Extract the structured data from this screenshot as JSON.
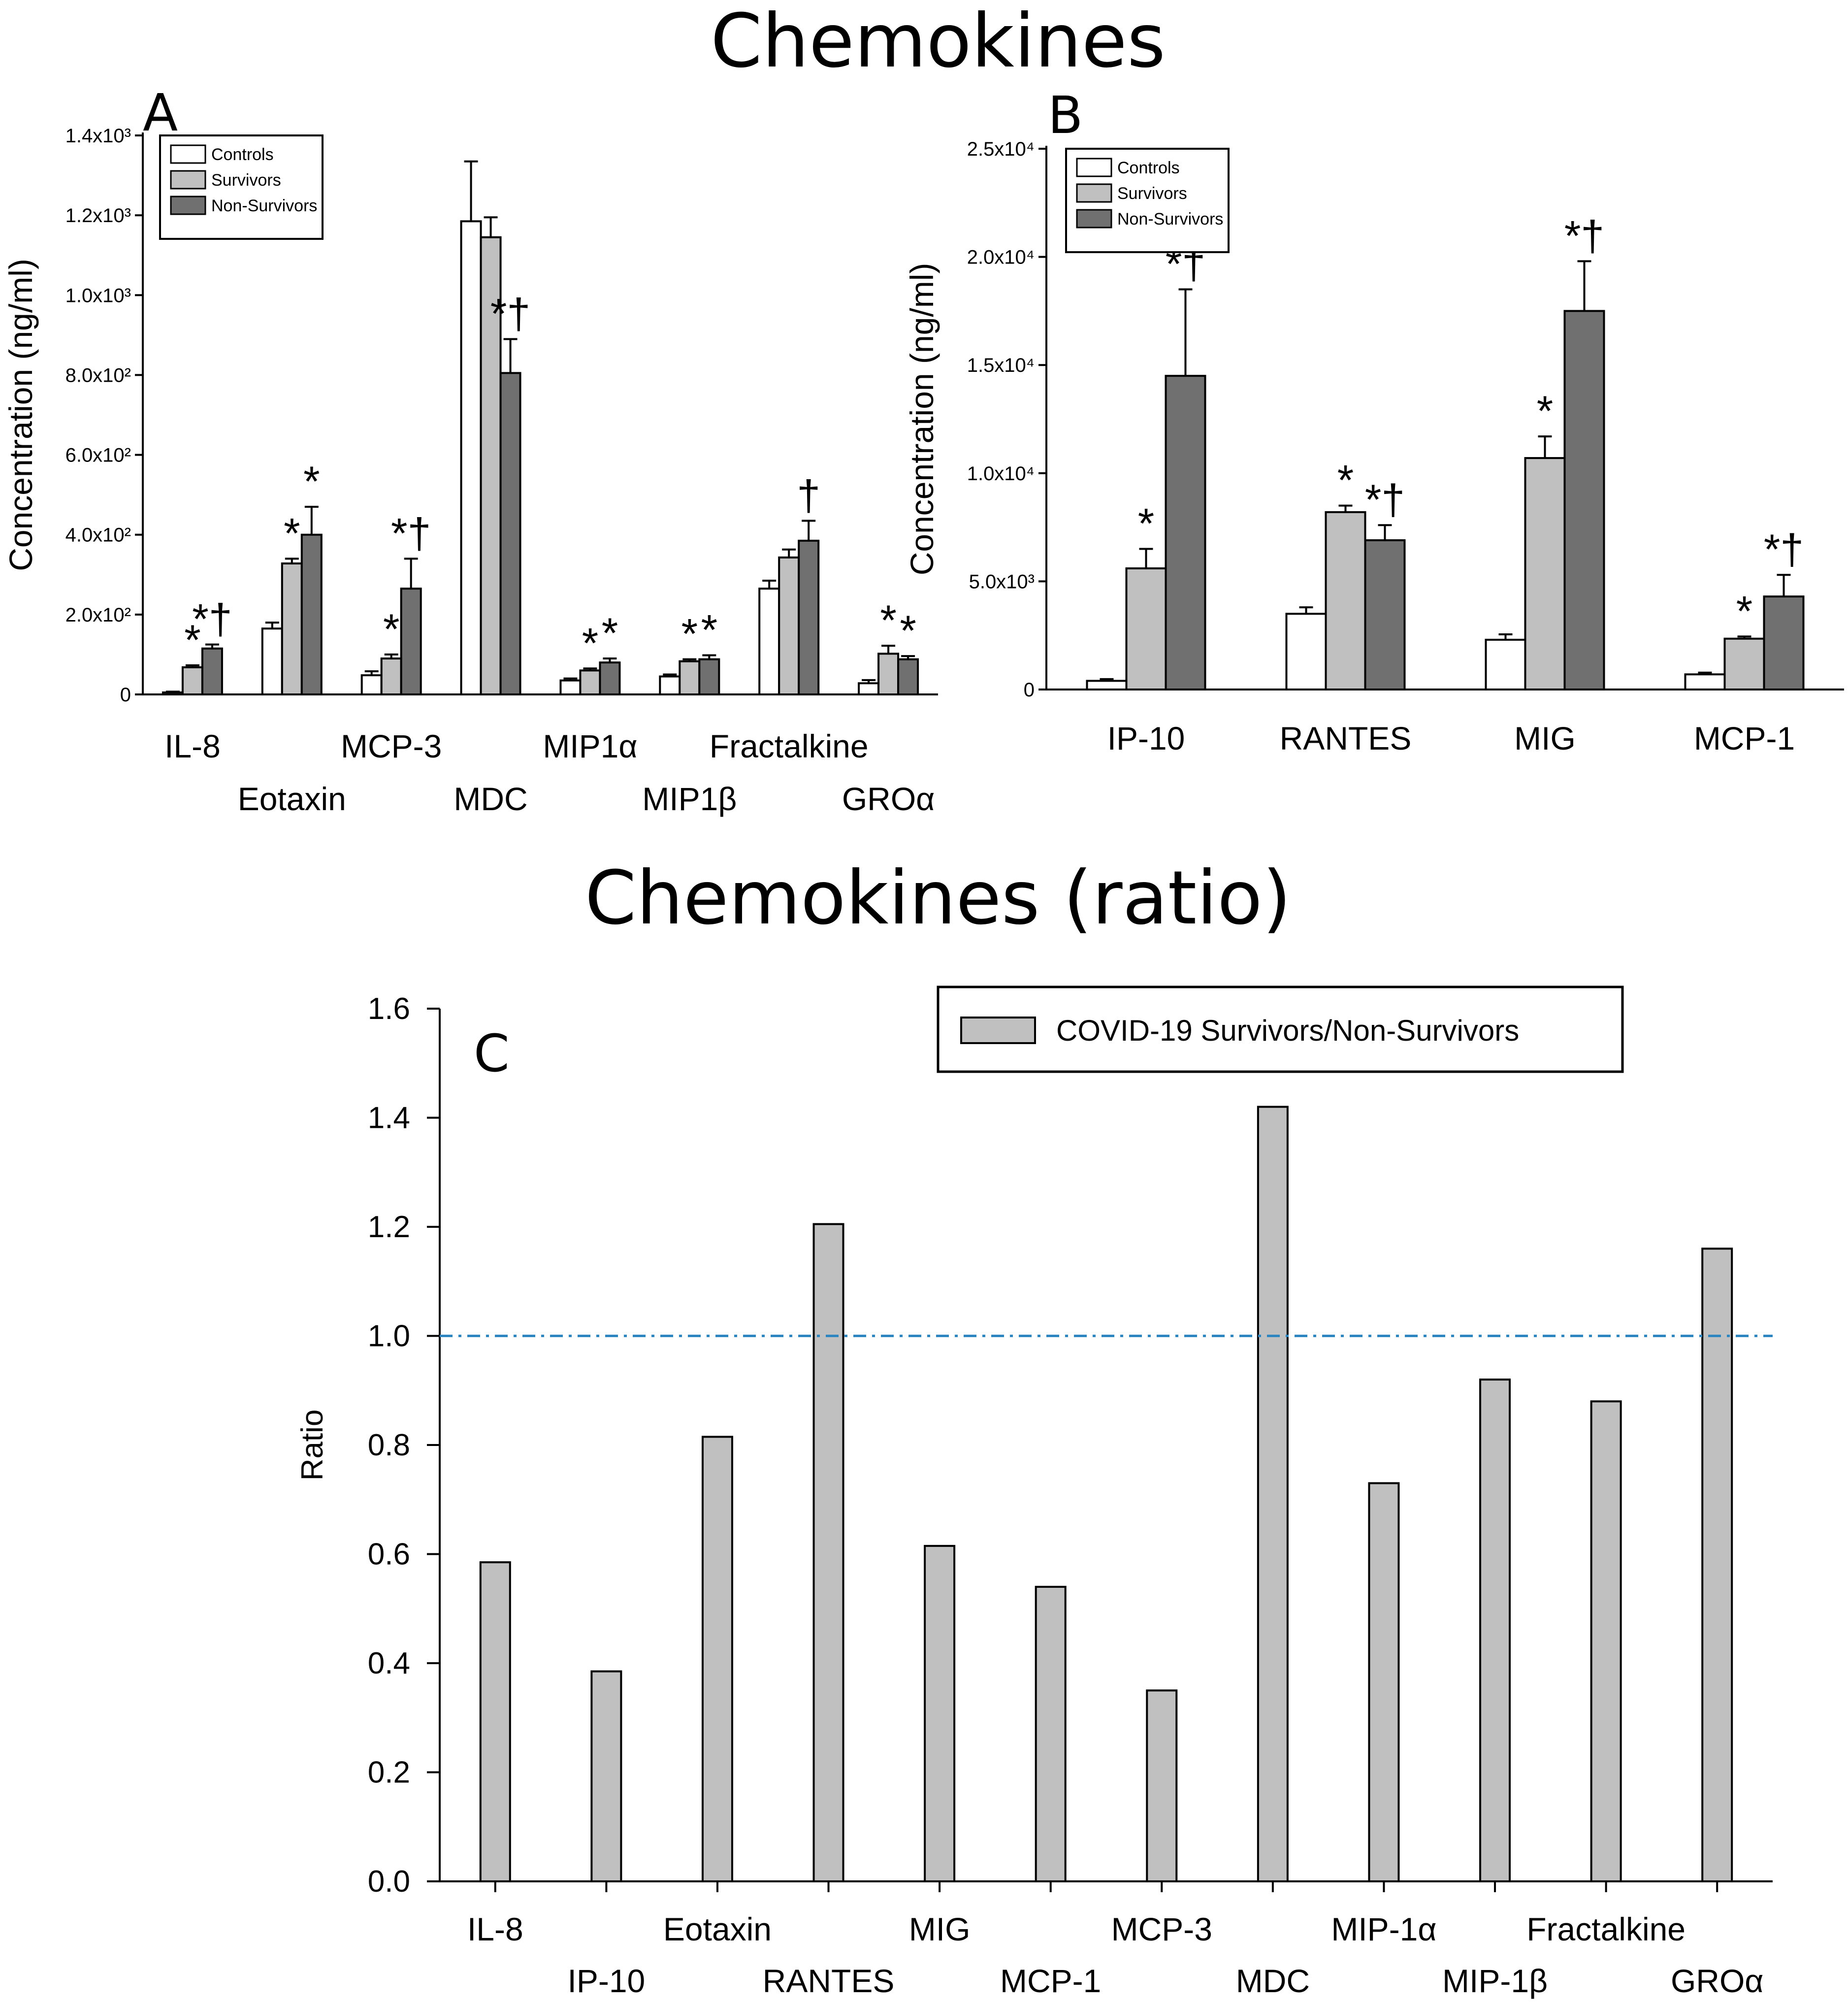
{
  "figure_title": "Chemokines",
  "ratio_title": "Chemokines (ratio)",
  "colors": {
    "controls": "#ffffff",
    "survivors": "#c0c0c0",
    "non_survivors": "#707070",
    "ratio_bar": "#c0c0c0",
    "reference_line": "#2e86c1"
  },
  "chart_data": [
    {
      "panel": "A",
      "type": "bar",
      "ylabel": "Concentration  (ng/ml)",
      "ylim": [
        0,
        1400
      ],
      "yticks": [
        0,
        200,
        400,
        600,
        800,
        1000,
        1200,
        1400
      ],
      "ytick_labels": [
        "0",
        "2.0x10²",
        "4.0x10²",
        "6.0x10²",
        "8.0x10²",
        "1.0x10³",
        "1.2x10³",
        "1.4x10³"
      ],
      "categories": [
        "IL-8",
        "Eotaxin",
        "MCP-3",
        "MDC",
        "MIP1α",
        "MIP1β",
        "Fractalkine",
        "GROα"
      ],
      "legend": [
        "Controls",
        "Survivors",
        "Non-Survivors"
      ],
      "series": [
        {
          "name": "Controls",
          "values": [
            5,
            165,
            48,
            1185,
            35,
            45,
            265,
            28
          ],
          "errors": [
            2,
            15,
            10,
            150,
            5,
            5,
            20,
            8
          ]
        },
        {
          "name": "Survivors",
          "values": [
            68,
            328,
            90,
            1145,
            60,
            83,
            343,
            102
          ],
          "errors": [
            5,
            12,
            10,
            50,
            5,
            5,
            20,
            20
          ]
        },
        {
          "name": "Non-Survivors",
          "values": [
            115,
            400,
            265,
            805,
            80,
            88,
            385,
            88
          ],
          "errors": [
            10,
            70,
            75,
            85,
            10,
            10,
            50,
            8
          ]
        }
      ],
      "annotations": [
        {
          "category": "IL-8",
          "series": "Survivors",
          "text": "*"
        },
        {
          "category": "IL-8",
          "series": "Non-Survivors",
          "text": "*†"
        },
        {
          "category": "Eotaxin",
          "series": "Survivors",
          "text": "*"
        },
        {
          "category": "Eotaxin",
          "series": "Non-Survivors",
          "text": "*"
        },
        {
          "category": "MCP-3",
          "series": "Survivors",
          "text": "*"
        },
        {
          "category": "MCP-3",
          "series": "Non-Survivors",
          "text": "*†"
        },
        {
          "category": "MDC",
          "series": "Non-Survivors",
          "text": "*†"
        },
        {
          "category": "MIP1α",
          "series": "Survivors",
          "text": "*"
        },
        {
          "category": "MIP1α",
          "series": "Non-Survivors",
          "text": "*"
        },
        {
          "category": "MIP1β",
          "series": "Survivors",
          "text": "*"
        },
        {
          "category": "MIP1β",
          "series": "Non-Survivors",
          "text": "*"
        },
        {
          "category": "Fractalkine",
          "series": "Non-Survivors",
          "text": "†"
        },
        {
          "category": "GROα",
          "series": "Survivors",
          "text": "*"
        },
        {
          "category": "GROα",
          "series": "Non-Survivors",
          "text": "*"
        }
      ]
    },
    {
      "panel": "B",
      "type": "bar",
      "ylabel": "Concentration  (ng/ml)",
      "ylim": [
        0,
        25000
      ],
      "yticks": [
        0,
        5000,
        10000,
        15000,
        20000,
        25000
      ],
      "ytick_labels": [
        "0",
        "5.0x10³",
        "1.0x10⁴",
        "1.5x10⁴",
        "2.0x10⁴",
        "2.5x10⁴"
      ],
      "categories": [
        "IP-10",
        "RANTES",
        "MIG",
        "MCP-1"
      ],
      "legend": [
        "Controls",
        "Survivors",
        "Non-Survivors"
      ],
      "series": [
        {
          "name": "Controls",
          "values": [
            400,
            3500,
            2300,
            700
          ],
          "errors": [
            80,
            300,
            250,
            80
          ]
        },
        {
          "name": "Survivors",
          "values": [
            5600,
            8200,
            10700,
            2350
          ],
          "errors": [
            900,
            300,
            1000,
            100
          ]
        },
        {
          "name": "Non-Survivors",
          "values": [
            14500,
            6900,
            17500,
            4300
          ],
          "errors": [
            4000,
            700,
            2300,
            1000
          ]
        }
      ],
      "annotations": [
        {
          "category": "IP-10",
          "series": "Survivors",
          "text": "*"
        },
        {
          "category": "IP-10",
          "series": "Non-Survivors",
          "text": "*†"
        },
        {
          "category": "RANTES",
          "series": "Survivors",
          "text": "*"
        },
        {
          "category": "RANTES",
          "series": "Non-Survivors",
          "text": "*†"
        },
        {
          "category": "MIG",
          "series": "Survivors",
          "text": "*"
        },
        {
          "category": "MIG",
          "series": "Non-Survivors",
          "text": "*†"
        },
        {
          "category": "MCP-1",
          "series": "Survivors",
          "text": "*"
        },
        {
          "category": "MCP-1",
          "series": "Non-Survivors",
          "text": "*†"
        }
      ]
    },
    {
      "panel": "C",
      "type": "bar",
      "title": "Chemokines (ratio)",
      "ylabel": "Ratio",
      "ylim": [
        0,
        1.6
      ],
      "yticks": [
        0,
        0.2,
        0.4,
        0.6,
        0.8,
        1.0,
        1.2,
        1.4,
        1.6
      ],
      "ytick_labels": [
        "0.0",
        "0.2",
        "0.4",
        "0.6",
        "0.8",
        "1.0",
        "1.2",
        "1.4",
        "1.6"
      ],
      "categories": [
        "IL-8",
        "IP-10",
        "Eotaxin",
        "RANTES",
        "MIG",
        "MCP-1",
        "MCP-3",
        "MDC",
        "MIP-1α",
        "MIP-1β",
        "Fractalkine",
        "GROα"
      ],
      "values": [
        0.585,
        0.385,
        0.815,
        1.205,
        0.615,
        0.54,
        0.35,
        1.42,
        0.73,
        0.92,
        0.88,
        1.16
      ],
      "reference_line": 1.0,
      "legend": [
        "COVID-19 Survivors/Non-Survivors"
      ]
    }
  ]
}
